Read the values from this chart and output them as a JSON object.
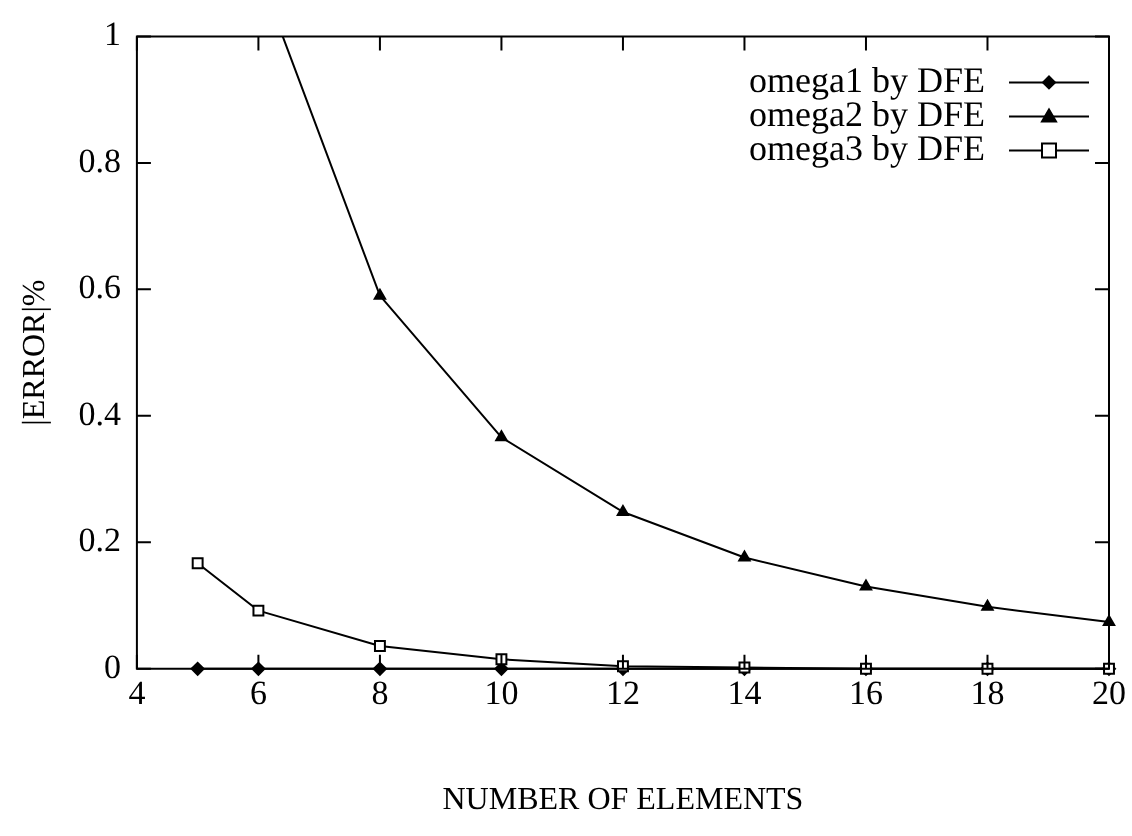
{
  "chart_data": {
    "type": "line",
    "xlabel": "NUMBER OF ELEMENTS",
    "ylabel": "|ERROR|%",
    "xlim": [
      4,
      20
    ],
    "xticks": [
      4,
      6,
      8,
      10,
      12,
      14,
      16,
      18,
      20
    ],
    "ylim": [
      0,
      1
    ],
    "yticks": [
      0,
      0.2,
      0.4,
      0.6,
      0.8,
      1
    ],
    "grid": false,
    "legend": "top right",
    "line_style": "solid",
    "series": [
      {
        "name": "omega1 by DFE",
        "color": "#000000",
        "marker": "diamond",
        "x": [
          5,
          6,
          8,
          10,
          12,
          14,
          16,
          18,
          20
        ],
        "values": [
          0,
          0,
          0,
          0,
          0,
          0,
          0,
          0,
          0
        ]
      },
      {
        "name": "omega2 by DFE",
        "color": "#000000",
        "marker": "triangle",
        "x": [
          6.4,
          8,
          10,
          12,
          14,
          16,
          18,
          20
        ],
        "values": [
          1,
          0.59,
          0.366,
          0.248,
          0.176,
          0.13,
          0.098,
          0.074
        ]
      },
      {
        "name": "omega3 by DFE",
        "color": "#000000",
        "marker": "square",
        "x": [
          5,
          6,
          8,
          10,
          12,
          14,
          16,
          18,
          20
        ],
        "values": [
          0.167,
          0.092,
          0.036,
          0.015,
          0.004,
          0.002,
          0,
          0,
          0
        ]
      }
    ]
  }
}
